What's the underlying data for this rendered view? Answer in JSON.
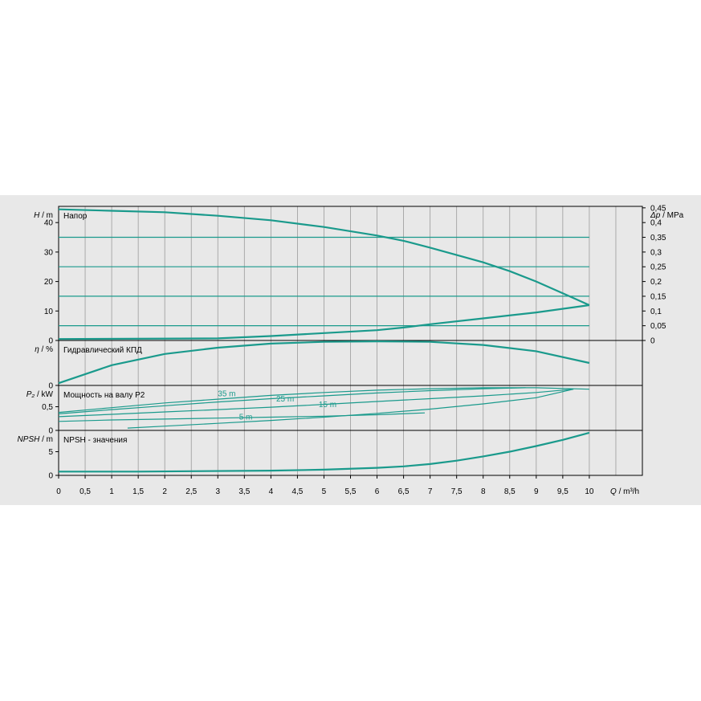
{
  "chart_data": [
    {
      "name": "head",
      "type": "line",
      "title": "Напор",
      "ylabel_left_sym": "H",
      "ylabel_left_unit": "/ m",
      "ylabel_right_sym": "Δp",
      "ylabel_right_unit": "/ MPa",
      "ylim": [
        0,
        45.5
      ],
      "yticks": [
        "0",
        "10",
        "20",
        "30",
        "40"
      ],
      "yticks_values": [
        0,
        10,
        20,
        30,
        40
      ],
      "right_ticks": [
        "0",
        "0,05",
        "0,1",
        "0,15",
        "0,2",
        "0,25",
        "0,3",
        "0,35",
        "0,4",
        "0,45"
      ],
      "right_ticks_values": [
        0,
        0.05,
        0.1,
        0.15,
        0.2,
        0.25,
        0.3,
        0.35,
        0.4,
        0.45
      ],
      "grid": true,
      "series": [
        {
          "x": [
            0,
            1,
            2,
            3,
            4,
            5,
            6,
            6.5,
            7,
            7.5,
            8,
            8.5,
            9,
            9.5,
            10
          ],
          "y": [
            44.5,
            44,
            43.5,
            42.3,
            40.8,
            38.5,
            35.6,
            33.8,
            31.5,
            29,
            26.5,
            23.5,
            20,
            16,
            12
          ]
        },
        {
          "x": [
            0,
            10
          ],
          "y": [
            35,
            35
          ]
        },
        {
          "x": [
            0,
            10
          ],
          "y": [
            25,
            25
          ]
        },
        {
          "x": [
            0,
            10
          ],
          "y": [
            15,
            15
          ]
        },
        {
          "x": [
            0,
            10
          ],
          "y": [
            5,
            5
          ]
        },
        {
          "x": [
            0,
            3,
            4,
            5,
            6,
            6.5,
            7,
            8,
            9,
            10
          ],
          "y": [
            0.5,
            0.7,
            1.5,
            2.5,
            3.5,
            4.4,
            5.5,
            7.5,
            9.5,
            12
          ]
        }
      ]
    },
    {
      "name": "efficiency",
      "type": "line",
      "title": "Гидравлический КПД",
      "ylabel_left_sym": "η",
      "ylabel_left_unit": "/ %",
      "ylim": [
        0,
        100
      ],
      "yticks": [
        "0"
      ],
      "yticks_values": [
        0
      ],
      "grid": true,
      "series": [
        {
          "x": [
            0,
            1,
            2,
            3,
            4,
            5,
            6,
            7,
            8,
            9,
            10
          ],
          "y": [
            5,
            45,
            70,
            84,
            93,
            97,
            98,
            97,
            90,
            76,
            50
          ]
        }
      ]
    },
    {
      "name": "power",
      "type": "line",
      "title": "Мощность на валу P2",
      "ylabel_left_sym": "P₂",
      "ylabel_left_unit": "/ kW",
      "ylim": [
        0,
        0.95
      ],
      "yticks": [
        "0",
        "0,5"
      ],
      "yticks_values": [
        0,
        0.5
      ],
      "grid": true,
      "annotations": [
        {
          "text": "35 m",
          "x": 3.0,
          "y": 0.72
        },
        {
          "text": "25 m",
          "x": 4.1,
          "y": 0.61
        },
        {
          "text": "15 m",
          "x": 4.9,
          "y": 0.49
        },
        {
          "text": "5 m",
          "x": 3.4,
          "y": 0.23
        }
      ],
      "series": [
        {
          "x": [
            0,
            1,
            2,
            3,
            4,
            5,
            6,
            7,
            8,
            9,
            10
          ],
          "y": [
            0.38,
            0.48,
            0.58,
            0.66,
            0.74,
            0.8,
            0.85,
            0.88,
            0.9,
            0.9,
            0.87
          ]
        },
        {
          "x": [
            0,
            1,
            2,
            3,
            4,
            5,
            6,
            7,
            8,
            8.8
          ],
          "y": [
            0.35,
            0.44,
            0.52,
            0.6,
            0.67,
            0.73,
            0.79,
            0.84,
            0.88,
            0.9
          ]
        },
        {
          "x": [
            0,
            1,
            2,
            3,
            4,
            5,
            6,
            7,
            8,
            9,
            9.7
          ],
          "y": [
            0.29,
            0.34,
            0.39,
            0.44,
            0.49,
            0.55,
            0.61,
            0.67,
            0.73,
            0.8,
            0.87
          ]
        },
        {
          "x": [
            0,
            1,
            2,
            3,
            4,
            5,
            6,
            6.9
          ],
          "y": [
            0.19,
            0.22,
            0.24,
            0.26,
            0.28,
            0.3,
            0.33,
            0.37
          ]
        },
        {
          "x": [
            1.3,
            2,
            3,
            4,
            5,
            6,
            7,
            8,
            9,
            9.7
          ],
          "y": [
            0.05,
            0.09,
            0.15,
            0.21,
            0.28,
            0.36,
            0.45,
            0.56,
            0.69,
            0.87
          ]
        }
      ]
    },
    {
      "name": "npsh",
      "type": "line",
      "title": "NPSH - значения",
      "ylabel_left_sym": "NPSH",
      "ylabel_left_unit": "/ m",
      "ylim": [
        0,
        9.5
      ],
      "yticks": [
        "0",
        "5"
      ],
      "yticks_values": [
        0,
        5
      ],
      "grid": true,
      "series": [
        {
          "x": [
            0,
            1.5,
            4,
            5,
            6,
            6.5,
            7,
            7.5,
            8,
            8.5,
            9,
            9.5,
            10
          ],
          "y": [
            0.8,
            0.8,
            1.0,
            1.2,
            1.6,
            1.9,
            2.4,
            3.1,
            4.0,
            5.0,
            6.2,
            7.5,
            9.0
          ]
        }
      ]
    }
  ],
  "x_axis": {
    "label_sym": "Q",
    "label_unit": "/ m³/h",
    "ticks": [
      "0",
      "0,5",
      "1",
      "1,5",
      "2",
      "2,5",
      "3",
      "3,5",
      "4",
      "4,5",
      "5",
      "5,5",
      "6",
      "6,5",
      "7",
      "7,5",
      "8",
      "8,5",
      "9",
      "9,5",
      "10"
    ],
    "values": [
      0,
      0.5,
      1,
      1.5,
      2,
      2.5,
      3,
      3.5,
      4,
      4.5,
      5,
      5.5,
      6,
      6.5,
      7,
      7.5,
      8,
      8.5,
      9,
      9.5,
      10
    ],
    "xlim": [
      0,
      11
    ]
  },
  "colors": {
    "curve": "#1a9a8c",
    "grid": "#9a9a9a",
    "panel": "#e8e8e8",
    "frame": "#000000"
  }
}
